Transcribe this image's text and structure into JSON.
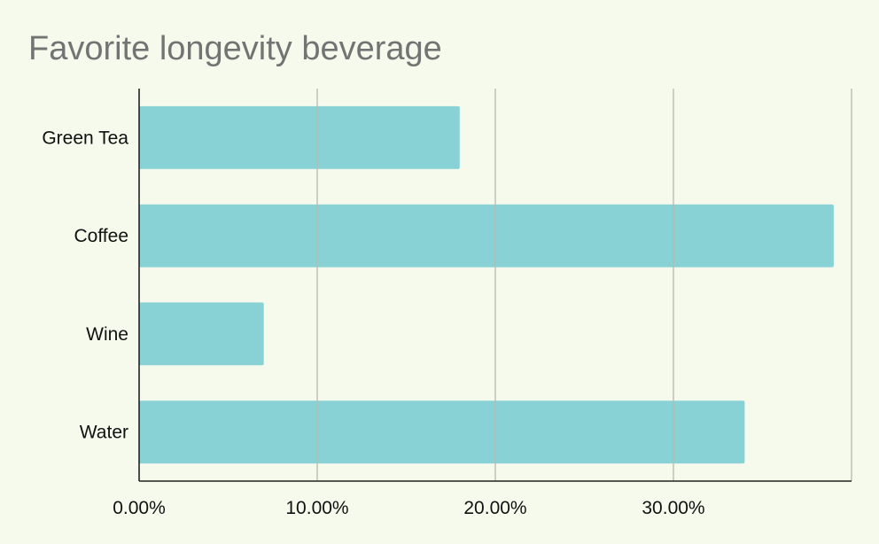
{
  "chart_data": {
    "type": "bar",
    "orientation": "horizontal",
    "title": "Favorite longevity beverage",
    "xlabel": "",
    "ylabel": "",
    "categories": [
      "Green Tea",
      "Coffee",
      "Wine",
      "Water"
    ],
    "values": [
      0.18,
      0.39,
      0.07,
      0.34
    ],
    "xlim": [
      0,
      0.4
    ],
    "xticks": [
      0,
      0.1,
      0.2,
      0.3
    ],
    "xtick_labels": [
      "0.00%",
      "10.00%",
      "20.00%",
      "30.00%"
    ],
    "grid": true,
    "legend": "none",
    "bar_color": "#88d2d6",
    "grid_color": "#b8bcb0",
    "background": "#f6faec"
  }
}
